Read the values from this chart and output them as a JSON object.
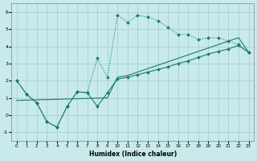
{
  "background_color": "#c8eaea",
  "grid_color": "#a0cccc",
  "line_color": "#1a7a6e",
  "xlabel": "Humidex (Indice chaleur)",
  "xlim": [
    -0.5,
    23.5
  ],
  "ylim": [
    -1.5,
    6.5
  ],
  "xticks": [
    0,
    1,
    2,
    3,
    4,
    5,
    6,
    7,
    8,
    9,
    10,
    11,
    12,
    13,
    14,
    15,
    16,
    17,
    18,
    19,
    20,
    21,
    22,
    23
  ],
  "yticks": [
    -1,
    0,
    1,
    2,
    3,
    4,
    5,
    6
  ],
  "curve1_x": [
    0,
    1,
    2,
    3,
    4,
    5,
    6,
    7,
    8,
    9,
    10,
    11,
    12,
    13,
    14,
    15,
    16,
    17,
    18,
    19,
    20,
    21,
    22,
    23
  ],
  "curve1_y": [
    2.0,
    1.2,
    0.7,
    -0.4,
    -0.7,
    0.5,
    1.35,
    1.3,
    3.3,
    2.2,
    5.8,
    5.4,
    5.8,
    5.7,
    5.5,
    5.1,
    4.7,
    4.7,
    4.4,
    4.5,
    4.5,
    4.3,
    4.1,
    3.65
  ],
  "curve2_x": [
    0,
    1,
    2,
    3,
    4,
    5,
    6,
    7,
    8,
    9,
    10,
    11,
    12,
    13,
    14,
    15,
    16,
    17,
    18,
    19,
    20,
    21,
    22,
    23
  ],
  "curve2_y": [
    2.0,
    1.2,
    0.7,
    -0.4,
    -0.7,
    0.5,
    1.35,
    1.3,
    0.5,
    1.3,
    2.1,
    2.2,
    2.35,
    2.5,
    2.65,
    2.8,
    3.0,
    3.15,
    3.35,
    3.55,
    3.7,
    3.85,
    4.05,
    3.65
  ],
  "curve3_x": [
    0,
    9,
    10,
    11,
    12,
    13,
    14,
    15,
    16,
    17,
    18,
    19,
    20,
    21,
    22,
    23
  ],
  "curve3_y": [
    0.85,
    1.0,
    2.2,
    2.3,
    2.5,
    2.7,
    2.9,
    3.1,
    3.3,
    3.5,
    3.7,
    3.9,
    4.1,
    4.3,
    4.5,
    3.65
  ]
}
